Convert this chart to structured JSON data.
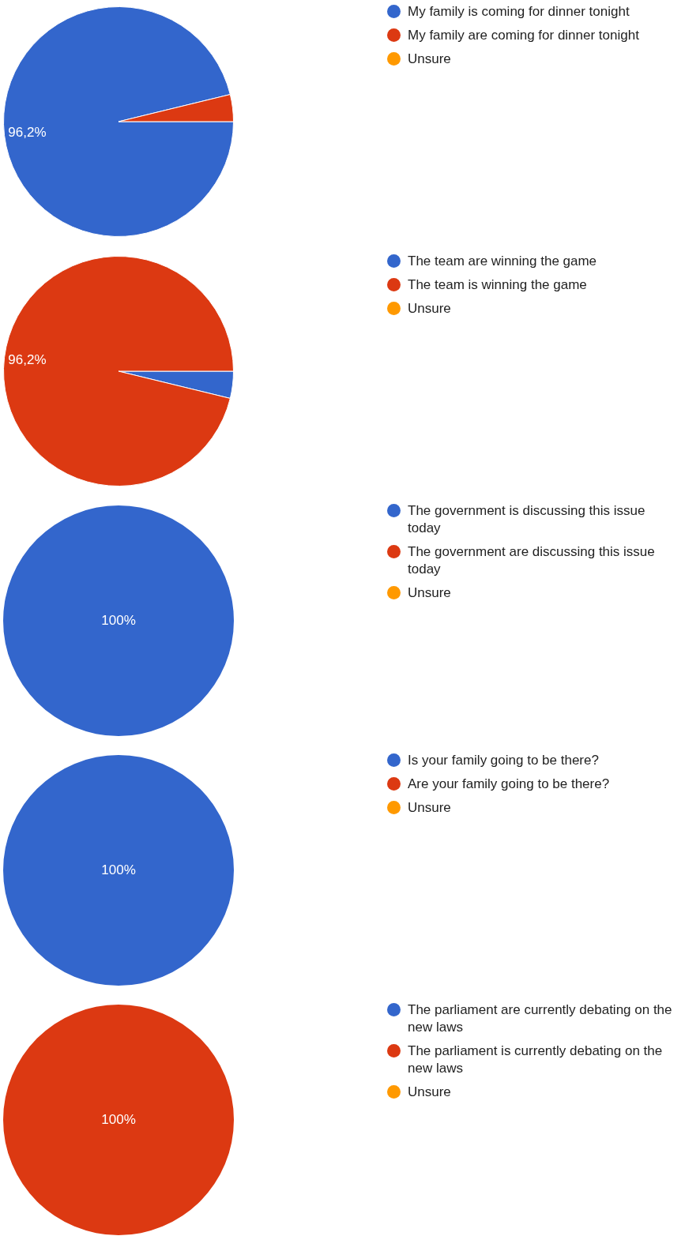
{
  "chart_data": [
    {
      "type": "pie",
      "categories": [
        "My family is coming for dinner tonight",
        "My family are coming for dinner tonight",
        "Unsure"
      ],
      "values": [
        96.2,
        3.8,
        0
      ],
      "colors": [
        "#3366cc",
        "#dc3912",
        "#ff9900"
      ],
      "value_labels": [
        "96,2%",
        null,
        null
      ],
      "legend": "top right"
    },
    {
      "type": "pie",
      "categories": [
        "The team are winning the game",
        "The team is winning the game",
        "Unsure"
      ],
      "values": [
        3.8,
        96.2,
        0
      ],
      "colors": [
        "#3366cc",
        "#dc3912",
        "#ff9900"
      ],
      "value_labels": [
        null,
        "96,2%",
        null
      ],
      "legend": "top right"
    },
    {
      "type": "pie",
      "categories": [
        "The government is discussing this issue today",
        "The government are discussing this issue today",
        "Unsure"
      ],
      "values": [
        100,
        0,
        0
      ],
      "colors": [
        "#3366cc",
        "#dc3912",
        "#ff9900"
      ],
      "value_labels": [
        "100%",
        null,
        null
      ],
      "legend": "top right"
    },
    {
      "type": "pie",
      "categories": [
        "Is your family going to be there?",
        "Are your family going to be there?",
        "Unsure"
      ],
      "values": [
        100,
        0,
        0
      ],
      "colors": [
        "#3366cc",
        "#dc3912",
        "#ff9900"
      ],
      "value_labels": [
        "100%",
        null,
        null
      ],
      "legend": "top right"
    },
    {
      "type": "pie",
      "categories": [
        "The parliament are currently debating on the new laws",
        "The parliament is currently debating on the new laws",
        "Unsure"
      ],
      "values": [
        0,
        100,
        0
      ],
      "colors": [
        "#3366cc",
        "#dc3912",
        "#ff9900"
      ],
      "value_labels": [
        null,
        "100%",
        null
      ],
      "legend": "top right"
    }
  ]
}
